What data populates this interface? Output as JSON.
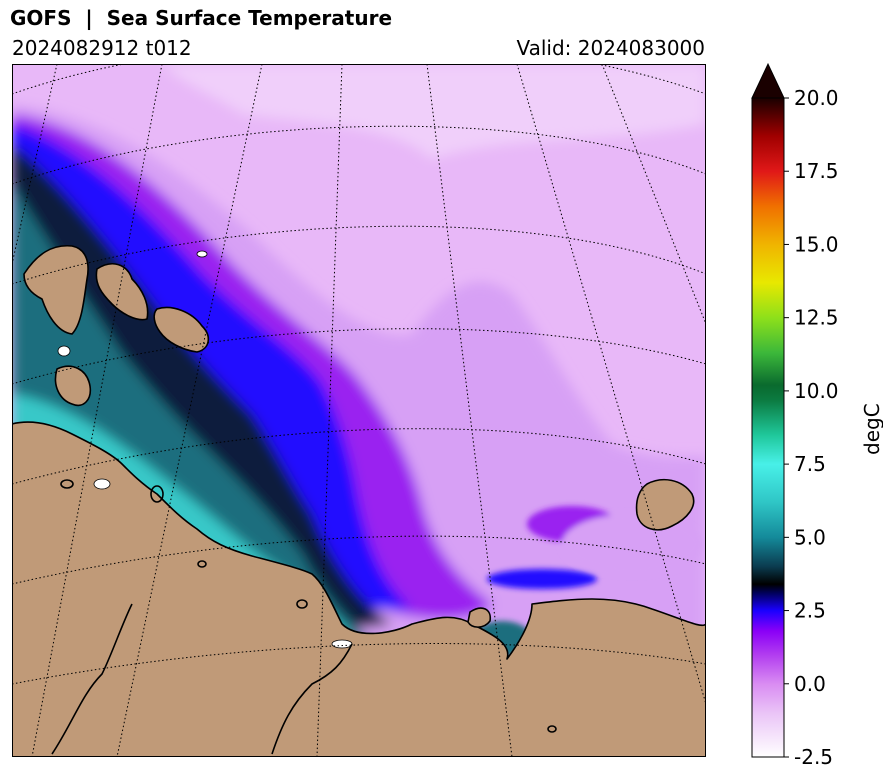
{
  "header": {
    "title": "GOFS  |  Sea Surface Temperature",
    "run": "2024082912 t012",
    "valid": "Valid: 2024083000"
  },
  "colorbar": {
    "label": "degC",
    "min": -2.5,
    "max": 20.0,
    "ticks": [
      "20.0",
      "17.5",
      "15.0",
      "12.5",
      "10.0",
      "7.5",
      "5.0",
      "2.5",
      "0.0",
      "-2.5"
    ],
    "extend": "max",
    "stops": [
      {
        "v": -2.5,
        "c": "#ffffff"
      },
      {
        "v": -1.0,
        "c": "#eac4f7"
      },
      {
        "v": 0.0,
        "c": "#d98cf2"
      },
      {
        "v": 1.0,
        "c": "#b13cf0"
      },
      {
        "v": 1.8,
        "c": "#8a00f7"
      },
      {
        "v": 2.5,
        "c": "#1a00ff"
      },
      {
        "v": 3.1,
        "c": "#00005a"
      },
      {
        "v": 3.4,
        "c": "#000000"
      },
      {
        "v": 4.0,
        "c": "#0b3b4f"
      },
      {
        "v": 5.0,
        "c": "#148a9a"
      },
      {
        "v": 6.2,
        "c": "#2fc6c6"
      },
      {
        "v": 7.5,
        "c": "#48f0e8"
      },
      {
        "v": 8.5,
        "c": "#1fc79a"
      },
      {
        "v": 9.7,
        "c": "#0b7a40"
      },
      {
        "v": 10.2,
        "c": "#0a6a2e"
      },
      {
        "v": 11.3,
        "c": "#3cb83a"
      },
      {
        "v": 12.5,
        "c": "#8ee01a"
      },
      {
        "v": 13.7,
        "c": "#e8e800"
      },
      {
        "v": 15.0,
        "c": "#f0b400"
      },
      {
        "v": 16.3,
        "c": "#f07000"
      },
      {
        "v": 17.5,
        "c": "#e01818"
      },
      {
        "v": 18.7,
        "c": "#a00000"
      },
      {
        "v": 20.0,
        "c": "#1a0000"
      }
    ]
  },
  "map": {
    "land_color": "#c09a78",
    "water_colors": {
      "cold": "#e8b8f8",
      "polar": "#f0cffa",
      "mid": "#d7a0f5",
      "purple": "#9a20f0",
      "blue": "#2008ff",
      "dark": "#0a1e3c",
      "teal": "#1a6e7e",
      "cyan": "#38c8c8"
    }
  }
}
